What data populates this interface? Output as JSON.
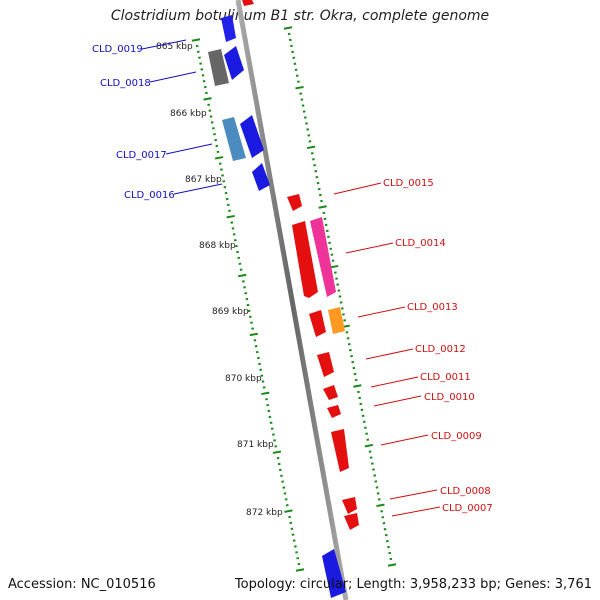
{
  "title": "Clostridium botulinum B1 str. Okra, complete genome",
  "footer": {
    "accession": "Accession: NC_010516",
    "stats": "Topology: circular; Length: 3,958,233 bp; Genes: 3,761"
  },
  "ruler": [
    "865 kbp",
    "866 kbp",
    "867 kbp",
    "868 kbp",
    "869 kbp",
    "870 kbp",
    "871 kbp",
    "872 kbp"
  ],
  "genes_left": [
    "CLD_0019",
    "CLD_0018",
    "CLD_0017",
    "CLD_0016"
  ],
  "genes_right": [
    "CLD_0015",
    "CLD_0014",
    "CLD_0013",
    "CLD_0012",
    "CLD_0011",
    "CLD_0010",
    "CLD_0009",
    "CLD_0008",
    "CLD_0007"
  ],
  "colors": {
    "reverse_gene": "#1010e8",
    "forward_gene": "#e41010",
    "gene_label_left": "#1010c0",
    "gene_label_right": "#d01010",
    "tick": "#1a8a1a",
    "backbone": "#888888",
    "magenta_feature": "#ee3399",
    "orange_feature": "#ff9922",
    "gray_feature": "#777777",
    "steel_feature": "#4b8bc0"
  }
}
